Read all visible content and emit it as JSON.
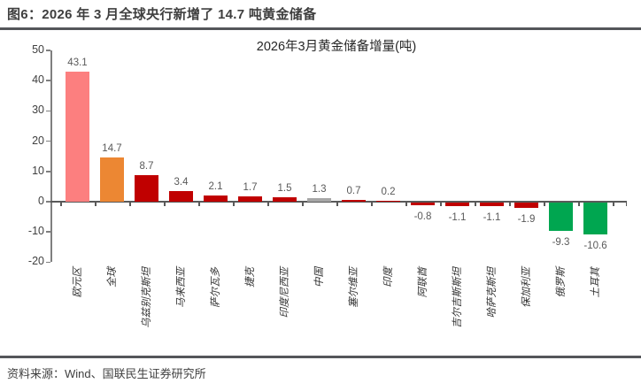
{
  "header": {
    "title": "图6：2026 年 3 月全球央行新增了 14.7 吨黄金储备"
  },
  "chart_data": {
    "type": "bar",
    "title": "2026年3月黄金储备增量(吨)",
    "categories": [
      "欧元区",
      "全球",
      "乌兹别克斯坦",
      "马来西亚",
      "萨尔瓦多",
      "捷克",
      "印度尼西亚",
      "中国",
      "塞尔维亚",
      "印度",
      "阿联酋",
      "吉尔吉斯斯坦",
      "哈萨克斯坦",
      "保加利亚",
      "俄罗斯",
      "土耳其"
    ],
    "values": [
      43.1,
      14.7,
      8.7,
      3.4,
      2.1,
      1.7,
      1.5,
      1.3,
      0.7,
      0.2,
      -0.8,
      -1.1,
      -1.1,
      -1.9,
      -9.3,
      -10.6
    ],
    "bar_colors": [
      "#FC7F7F",
      "#EC8733",
      "#C00000",
      "#C00000",
      "#C00000",
      "#C00000",
      "#C00000",
      "#A6A6A6",
      "#C00000",
      "#C00000",
      "#C00000",
      "#C00000",
      "#C00000",
      "#C00000",
      "#00A650",
      "#00A650"
    ],
    "xlabel": "",
    "ylabel": "",
    "ylim": [
      -20,
      50
    ],
    "yticks": [
      50,
      40,
      30,
      20,
      10,
      0,
      -10,
      -20
    ],
    "grid": false,
    "legend": false,
    "value_labels": true,
    "axis_color": "#7f7f7f",
    "value_label_color": "#595959"
  },
  "footer": {
    "source": "资料来源：Wind、国联民生证券研究所"
  }
}
